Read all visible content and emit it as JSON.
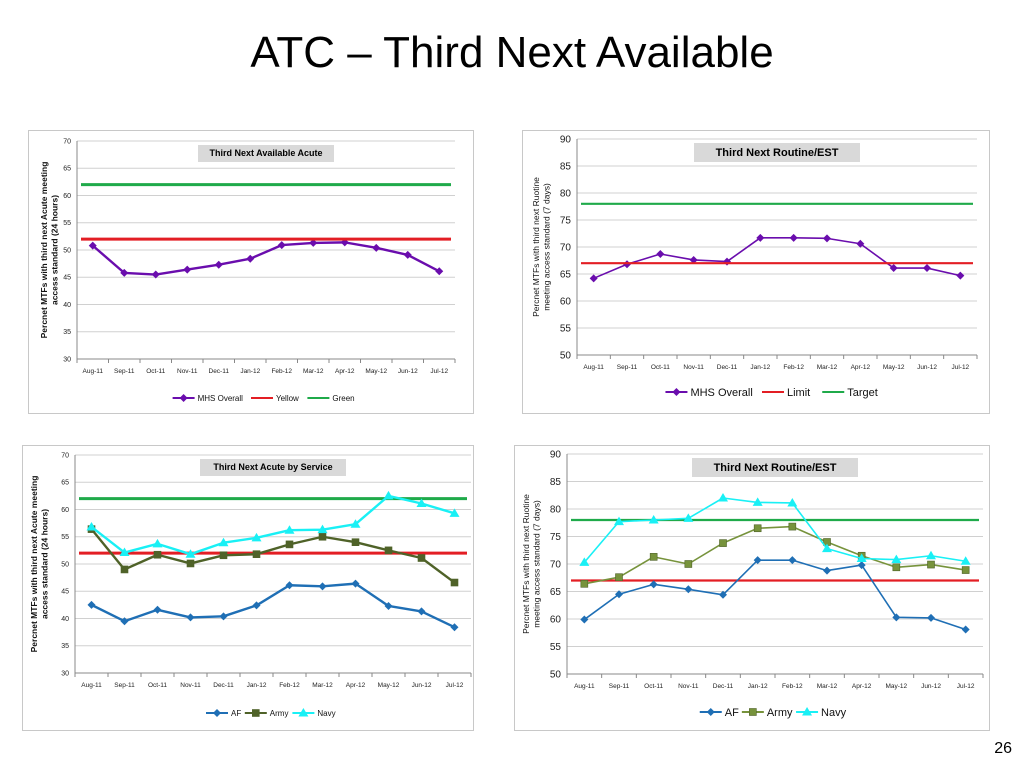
{
  "slide": {
    "title": "ATC – Third Next Available",
    "page_number": "26"
  },
  "colors": {
    "purple": "#6a0dad",
    "red": "#e31e24",
    "green": "#1faa4a",
    "blue": "#1f6fb5",
    "olive": "#77933c",
    "olive_dark": "#4f6228",
    "cyan": "#19f0f5"
  },
  "chart_data": [
    {
      "type": "line",
      "title": "Third Next Available Acute",
      "ylabel": "Percnet MTFs with third next Acute meeting access standard (24 hours)",
      "xlabel": "",
      "categories": [
        "Aug-11",
        "Sep-11",
        "Oct-11",
        "Nov-11",
        "Dec-11",
        "Jan-12",
        "Feb-12",
        "Mar-12",
        "Apr-12",
        "May-12",
        "Jun-12",
        "Jul-12"
      ],
      "ylim": [
        30,
        70
      ],
      "yticks": [
        30,
        35,
        40,
        45,
        50,
        55,
        60,
        65,
        70
      ],
      "grid": true,
      "legend": "bottom",
      "series": [
        {
          "name": "MHS Overall",
          "color": "#6a0dad",
          "marker": "diamond",
          "values": [
            50.8,
            45.8,
            45.5,
            46.4,
            47.3,
            48.4,
            50.9,
            51.3,
            51.4,
            50.4,
            49.1,
            46.1
          ]
        },
        {
          "name": "Yellow",
          "color": "#e31e24",
          "marker": "none",
          "values": [
            52,
            52,
            52,
            52,
            52,
            52,
            52,
            52,
            52,
            52,
            52,
            52
          ]
        },
        {
          "name": "Green",
          "color": "#1faa4a",
          "marker": "none",
          "values": [
            62,
            62,
            62,
            62,
            62,
            62,
            62,
            62,
            62,
            62,
            62,
            62
          ]
        }
      ]
    },
    {
      "type": "line",
      "title": "Third Next Routine/EST",
      "ylabel": "Percnet MTFs with third next Ruotine meeting access standard (7 days)",
      "xlabel": "",
      "categories": [
        "Aug-11",
        "Sep-11",
        "Oct-11",
        "Nov-11",
        "Dec-11",
        "Jan-12",
        "Feb-12",
        "Mar-12",
        "Apr-12",
        "May-12",
        "Jun-12",
        "Jul-12"
      ],
      "ylim": [
        50,
        90
      ],
      "yticks": [
        50,
        55,
        60,
        65,
        70,
        75,
        80,
        85,
        90
      ],
      "grid": true,
      "legend": "bottom",
      "series": [
        {
          "name": "MHS Overall",
          "color": "#6a0dad",
          "marker": "diamond",
          "values": [
            64.2,
            66.8,
            68.7,
            67.6,
            67.3,
            71.7,
            71.7,
            71.6,
            70.6,
            66.1,
            66.1,
            64.7
          ]
        },
        {
          "name": "Limit",
          "color": "#e31e24",
          "marker": "none",
          "values": [
            67,
            67,
            67,
            67,
            67,
            67,
            67,
            67,
            67,
            67,
            67,
            67
          ]
        },
        {
          "name": "Target",
          "color": "#1faa4a",
          "marker": "none",
          "values": [
            78,
            78,
            78,
            78,
            78,
            78,
            78,
            78,
            78,
            78,
            78,
            78
          ]
        }
      ]
    },
    {
      "type": "line",
      "title": "Third Next Acute by Service",
      "ylabel": "Percnet MTFs with third next Acute meeting access standard (24 hours)",
      "xlabel": "",
      "categories": [
        "Aug-11",
        "Sep-11",
        "Oct-11",
        "Nov-11",
        "Dec-11",
        "Jan-12",
        "Feb-12",
        "Mar-12",
        "Apr-12",
        "May-12",
        "Jun-12",
        "Jul-12"
      ],
      "ylim": [
        30,
        70
      ],
      "yticks": [
        30,
        35,
        40,
        45,
        50,
        55,
        60,
        65,
        70
      ],
      "grid": true,
      "legend": "bottom",
      "series": [
        {
          "name": "Yellow limit",
          "color": "#e31e24",
          "marker": "none",
          "legend": false,
          "values": [
            52,
            52,
            52,
            52,
            52,
            52,
            52,
            52,
            52,
            52,
            52,
            52
          ]
        },
        {
          "name": "Green target",
          "color": "#1faa4a",
          "marker": "none",
          "legend": false,
          "values": [
            62,
            62,
            62,
            62,
            62,
            62,
            62,
            62,
            62,
            62,
            62,
            62
          ]
        },
        {
          "name": "AF",
          "color": "#1f6fb5",
          "marker": "diamond",
          "values": [
            42.5,
            39.5,
            41.6,
            40.2,
            40.4,
            42.4,
            46.1,
            45.9,
            46.4,
            42.3,
            41.3,
            38.4
          ]
        },
        {
          "name": "Army",
          "color": "#4f6228",
          "marker": "square",
          "values": [
            56.4,
            49.0,
            51.7,
            50.1,
            51.6,
            51.8,
            53.6,
            55.0,
            54.0,
            52.5,
            51.1,
            46.6
          ]
        },
        {
          "name": "Navy",
          "color": "#19f0f5",
          "marker": "triangle",
          "values": [
            56.8,
            52.1,
            53.7,
            51.8,
            53.9,
            54.8,
            56.2,
            56.3,
            57.3,
            62.5,
            61.1,
            59.3
          ]
        }
      ]
    },
    {
      "type": "line",
      "title": "Third Next Routine/EST",
      "ylabel": "Percnet MTFs with third next Ruotine meeting access standard (7 days)",
      "xlabel": "",
      "categories": [
        "Aug-11",
        "Sep-11",
        "Oct-11",
        "Nov-11",
        "Dec-11",
        "Jan-12",
        "Feb-12",
        "Mar-12",
        "Apr-12",
        "May-12",
        "Jun-12",
        "Jul-12"
      ],
      "ylim": [
        50,
        90
      ],
      "yticks": [
        50,
        55,
        60,
        65,
        70,
        75,
        80,
        85,
        90
      ],
      "grid": true,
      "legend": "bottom",
      "series": [
        {
          "name": "Limit",
          "color": "#e31e24",
          "marker": "none",
          "legend": false,
          "values": [
            67,
            67,
            67,
            67,
            67,
            67,
            67,
            67,
            67,
            67,
            67,
            67
          ]
        },
        {
          "name": "Target",
          "color": "#1faa4a",
          "marker": "none",
          "legend": false,
          "values": [
            78,
            78,
            78,
            78,
            78,
            78,
            78,
            78,
            78,
            78,
            78,
            78
          ]
        },
        {
          "name": "AF",
          "color": "#1f6fb5",
          "marker": "diamond",
          "values": [
            59.9,
            64.5,
            66.3,
            65.4,
            64.4,
            70.7,
            70.7,
            68.8,
            69.8,
            60.3,
            60.2,
            58.1
          ]
        },
        {
          "name": "Army",
          "color": "#77933c",
          "marker": "square",
          "values": [
            66.4,
            67.6,
            71.3,
            70.0,
            73.8,
            76.5,
            76.8,
            74.0,
            71.5,
            69.4,
            69.9,
            68.9
          ]
        },
        {
          "name": "Navy",
          "color": "#19f0f5",
          "marker": "triangle",
          "values": [
            70.3,
            77.7,
            78.0,
            78.3,
            82.0,
            81.2,
            81.1,
            72.8,
            71.0,
            70.8,
            71.5,
            70.5
          ]
        }
      ]
    }
  ]
}
